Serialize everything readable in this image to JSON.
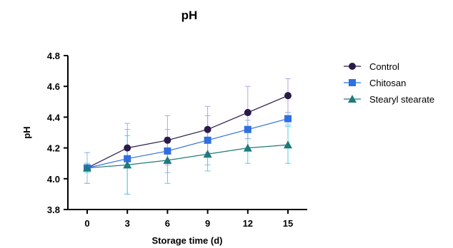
{
  "chart_data": {
    "type": "line",
    "title": "pH",
    "xlabel": "Storage time (d)",
    "ylabel": "pH",
    "x": [
      0,
      3,
      6,
      9,
      12,
      15
    ],
    "x_tick_labels": [
      "0",
      "3",
      "6",
      "9",
      "12",
      "15"
    ],
    "ylim": [
      3.8,
      4.8
    ],
    "y_ticks": [
      3.8,
      4.0,
      4.2,
      4.4,
      4.6,
      4.8
    ],
    "y_tick_labels": [
      "3.8",
      "4.0",
      "4.2",
      "4.4",
      "4.6",
      "4.8"
    ],
    "grid": false,
    "legend_position": "right",
    "series": [
      {
        "name": "Control",
        "marker": "circle",
        "color": "#2a1a4a",
        "error_color": "#b9a3dc",
        "values": [
          4.07,
          4.2,
          4.25,
          4.32,
          4.43,
          4.54
        ],
        "error": [
          0.1,
          0.12,
          0.16,
          0.15,
          0.17,
          0.11
        ]
      },
      {
        "name": "Chitosan",
        "marker": "square",
        "color": "#2f6fe0",
        "error_color": "#8fb4ef",
        "values": [
          4.07,
          4.13,
          4.18,
          4.25,
          4.32,
          4.39
        ],
        "error": [
          0.1,
          0.23,
          0.14,
          0.16,
          0.06,
          0.04
        ]
      },
      {
        "name": "Stearyl stearate",
        "marker": "triangle",
        "color": "#1f7a7a",
        "error_color": "#52d0e3",
        "values": [
          4.07,
          4.09,
          4.12,
          4.16,
          4.2,
          4.22
        ],
        "error": [
          0.03,
          0.19,
          0.15,
          0.11,
          0.1,
          0.12
        ]
      }
    ]
  }
}
